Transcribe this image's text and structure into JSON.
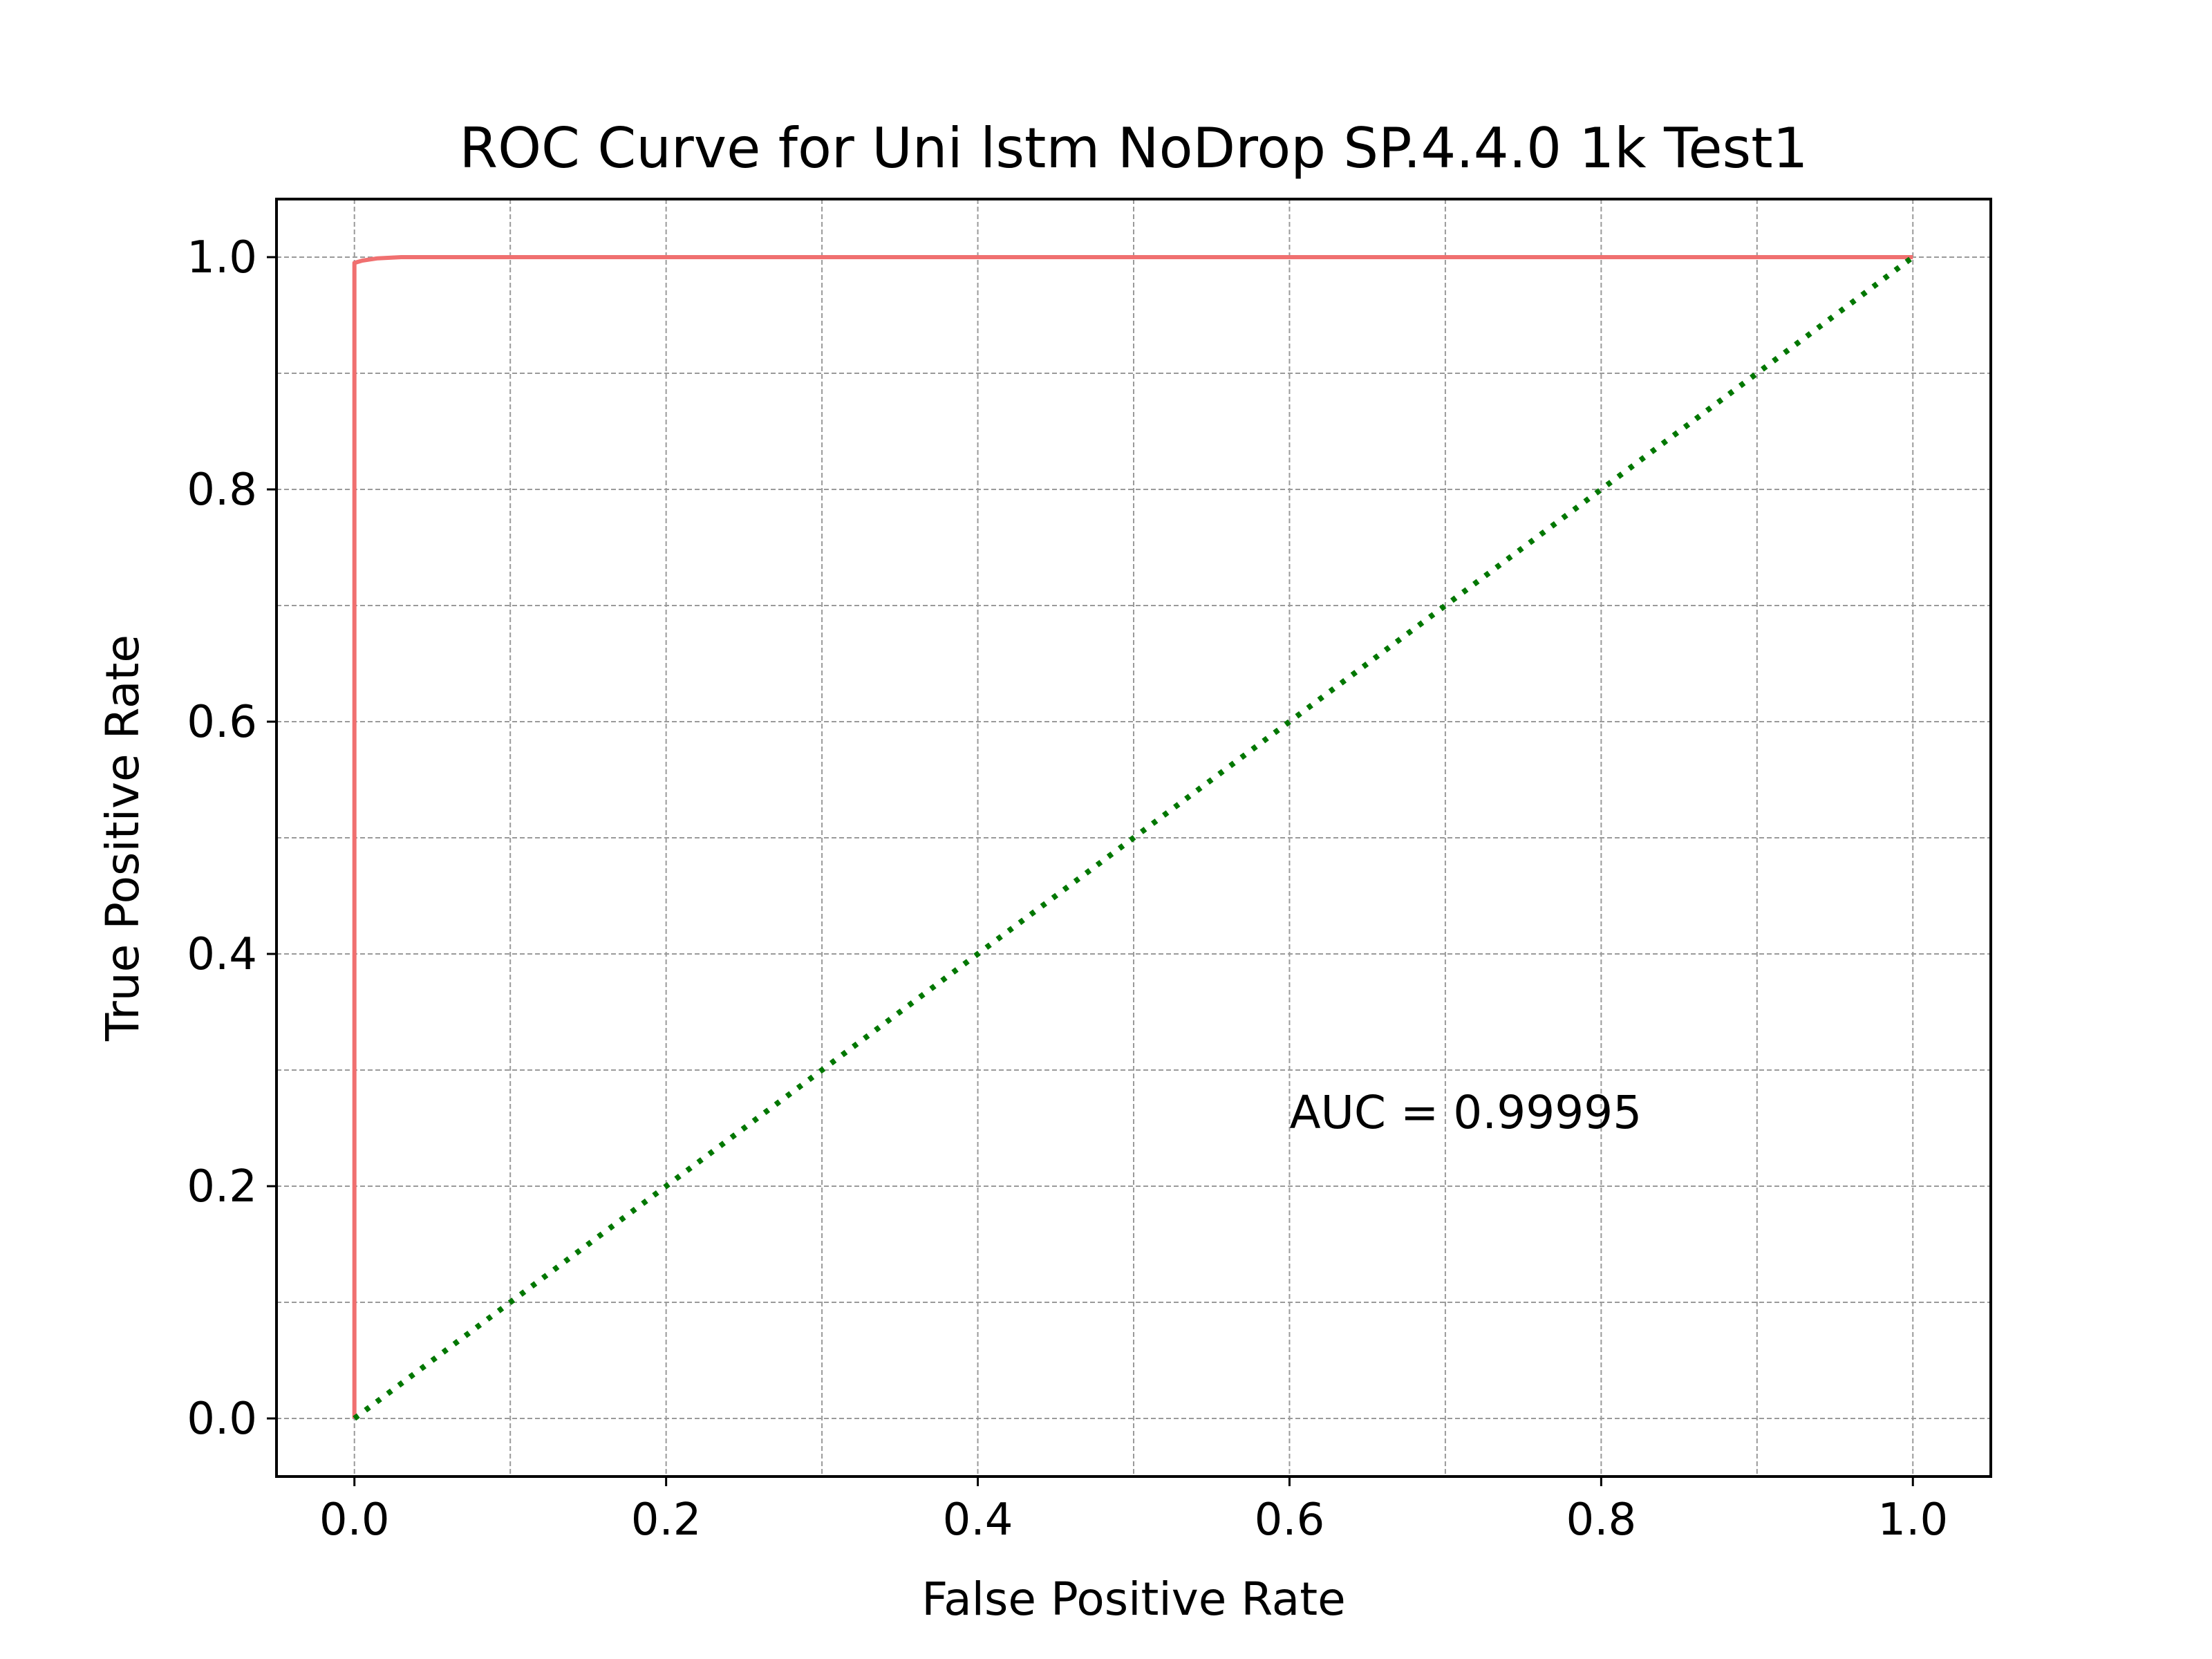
{
  "chart_data": {
    "type": "line",
    "title": "ROC Curve for Uni lstm NoDrop SP.4.4.0 1k Test1",
    "xlabel": "False Positive Rate",
    "ylabel": "True Positive Rate",
    "xlim": [
      -0.05,
      1.05
    ],
    "ylim": [
      -0.05,
      1.05
    ],
    "xticks": [
      0.0,
      0.2,
      0.4,
      0.6,
      0.8,
      1.0
    ],
    "xtick_labels": [
      "0.0",
      "0.2",
      "0.4",
      "0.6",
      "0.8",
      "1.0"
    ],
    "yticks": [
      0.0,
      0.2,
      0.4,
      0.6,
      0.8,
      1.0
    ],
    "ytick_labels": [
      "0.0",
      "0.2",
      "0.4",
      "0.6",
      "0.8",
      "1.0"
    ],
    "grid_minor_step": 0.1,
    "grid": true,
    "series": [
      {
        "style": "solid",
        "color": "#f07070",
        "x": [
          0.0,
          0.0,
          0.005,
          0.015,
          0.03,
          1.0
        ],
        "y": [
          0.0,
          0.995,
          0.997,
          0.999,
          1.0,
          1.0
        ]
      },
      {
        "style": "dotted",
        "color": "#007700",
        "x": [
          0.0,
          1.0
        ],
        "y": [
          0.0,
          1.0
        ]
      }
    ],
    "annotations": [
      {
        "text": "AUC = 0.99995",
        "x": 0.6,
        "y": 0.25
      }
    ]
  }
}
